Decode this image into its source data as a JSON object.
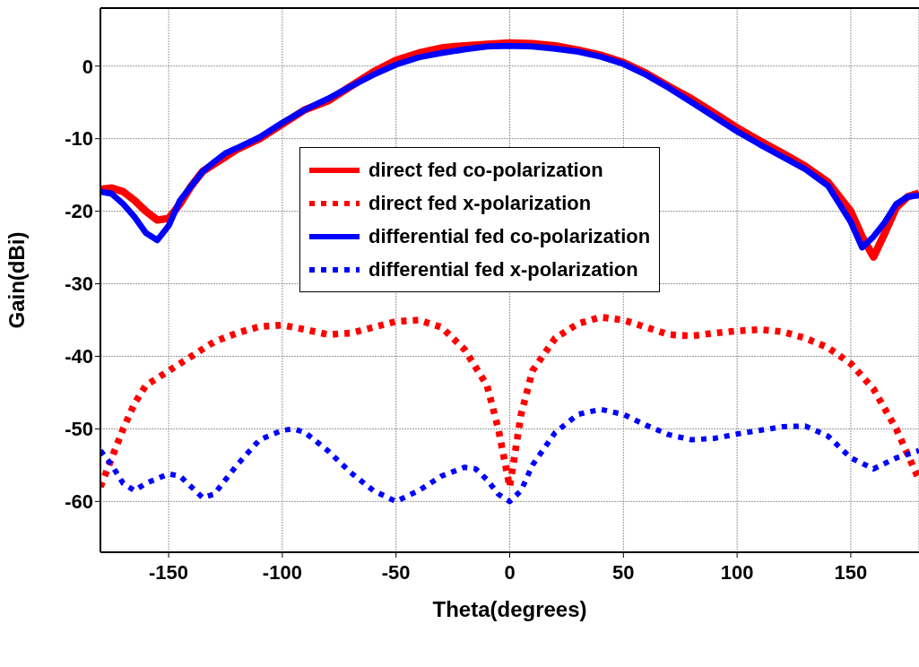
{
  "chart_data": {
    "type": "line",
    "xlabel": "Theta(degrees)",
    "ylabel": "Gain(dBi)",
    "xlim": [
      -180,
      180
    ],
    "ylim": [
      -67,
      8
    ],
    "xticks": [
      -150,
      -100,
      -50,
      0,
      50,
      100,
      150
    ],
    "yticks": [
      -60,
      -50,
      -40,
      -30,
      -20,
      -10,
      0
    ],
    "grid": true,
    "legend": "top",
    "marker": "none",
    "series": [
      {
        "name": "direct fed co-polarization",
        "color": "#ff0000",
        "line_style": "solid",
        "x": [
          -180,
          -175,
          -170,
          -165,
          -160,
          -155,
          -150,
          -145,
          -140,
          -135,
          -130,
          -125,
          -120,
          -110,
          -100,
          -90,
          -80,
          -70,
          -60,
          -50,
          -40,
          -30,
          -20,
          -10,
          0,
          10,
          20,
          30,
          40,
          50,
          60,
          70,
          80,
          90,
          100,
          110,
          120,
          130,
          140,
          150,
          155,
          160,
          165,
          170,
          175,
          180
        ],
        "values": [
          -17,
          -16.8,
          -17.3,
          -18.5,
          -20,
          -21.2,
          -21,
          -19,
          -16.5,
          -14.5,
          -13.5,
          -12.5,
          -11.5,
          -10,
          -8,
          -6,
          -4.8,
          -2.8,
          -0.8,
          0.8,
          1.8,
          2.5,
          2.8,
          3,
          3.2,
          3.1,
          2.8,
          2.2,
          1.5,
          0.5,
          -1,
          -2.8,
          -4.5,
          -6.5,
          -8.5,
          -10.3,
          -12,
          -13.8,
          -16,
          -20,
          -23.5,
          -26.3,
          -23,
          -19.5,
          -18,
          -17.5
        ]
      },
      {
        "name": "direct fed x-polarization",
        "color": "#ff0000",
        "line_style": "dotted",
        "x": [
          -180,
          -175,
          -170,
          -165,
          -160,
          -150,
          -140,
          -130,
          -120,
          -110,
          -100,
          -90,
          -80,
          -70,
          -60,
          -50,
          -40,
          -30,
          -20,
          -10,
          -5,
          0,
          5,
          10,
          20,
          30,
          40,
          50,
          60,
          70,
          80,
          90,
          100,
          110,
          120,
          130,
          140,
          150,
          160,
          170,
          175,
          180
        ],
        "values": [
          -58,
          -54,
          -50,
          -46.5,
          -44,
          -42,
          -40,
          -38,
          -36.8,
          -35.9,
          -35.7,
          -36.3,
          -37,
          -36.8,
          -36,
          -35.2,
          -35,
          -36,
          -39,
          -44,
          -50,
          -58,
          -48,
          -42,
          -37.5,
          -35.5,
          -34.6,
          -35,
          -36,
          -37,
          -37.2,
          -36.8,
          -36.5,
          -36.3,
          -36.6,
          -37.5,
          -38.8,
          -41,
          -44.5,
          -50,
          -53.5,
          -57
        ]
      },
      {
        "name": "differential fed co-polarization",
        "color": "#0000ff",
        "line_style": "solid",
        "x": [
          -180,
          -175,
          -170,
          -165,
          -160,
          -155,
          -150,
          -145,
          -140,
          -135,
          -130,
          -125,
          -120,
          -110,
          -100,
          -90,
          -80,
          -70,
          -60,
          -50,
          -40,
          -30,
          -20,
          -10,
          0,
          10,
          20,
          30,
          40,
          50,
          60,
          70,
          80,
          90,
          100,
          110,
          120,
          130,
          140,
          150,
          155,
          160,
          165,
          170,
          175,
          180
        ],
        "values": [
          -17.3,
          -17.6,
          -19,
          -20.8,
          -23,
          -24,
          -22,
          -18.5,
          -16.5,
          -14.5,
          -13.2,
          -12,
          -11.3,
          -9.8,
          -7.8,
          -6,
          -4.5,
          -2.8,
          -1.2,
          0.2,
          1.2,
          1.8,
          2.3,
          2.7,
          2.8,
          2.7,
          2.4,
          2,
          1.3,
          0.3,
          -1.2,
          -3,
          -5,
          -7,
          -9,
          -10.8,
          -12.5,
          -14.2,
          -16.5,
          -21.5,
          -25,
          -23.5,
          -21.5,
          -19,
          -18,
          -17.8
        ]
      },
      {
        "name": "differential fed x-polarization",
        "color": "#0000ff",
        "line_style": "dotted",
        "x": [
          -180,
          -175,
          -170,
          -165,
          -160,
          -150,
          -145,
          -140,
          -135,
          -130,
          -120,
          -110,
          -100,
          -95,
          -90,
          -80,
          -70,
          -60,
          -50,
          -40,
          -30,
          -20,
          -15,
          -10,
          -5,
          0,
          5,
          10,
          20,
          30,
          40,
          50,
          60,
          70,
          80,
          90,
          100,
          110,
          120,
          130,
          140,
          150,
          160,
          170,
          180
        ],
        "values": [
          -53,
          -55,
          -57.5,
          -58.5,
          -57.5,
          -56.2,
          -56.5,
          -58,
          -59.5,
          -59,
          -55,
          -51.5,
          -50.2,
          -50,
          -50.5,
          -53,
          -56,
          -58.5,
          -60,
          -58.5,
          -56.5,
          -55.3,
          -55.5,
          -57,
          -59,
          -60,
          -58.5,
          -55,
          -50.5,
          -48,
          -47.3,
          -48,
          -49.5,
          -50.8,
          -51.5,
          -51.3,
          -50.7,
          -50.2,
          -49.7,
          -49.6,
          -51,
          -54,
          -55.5,
          -54,
          -53
        ]
      }
    ]
  }
}
